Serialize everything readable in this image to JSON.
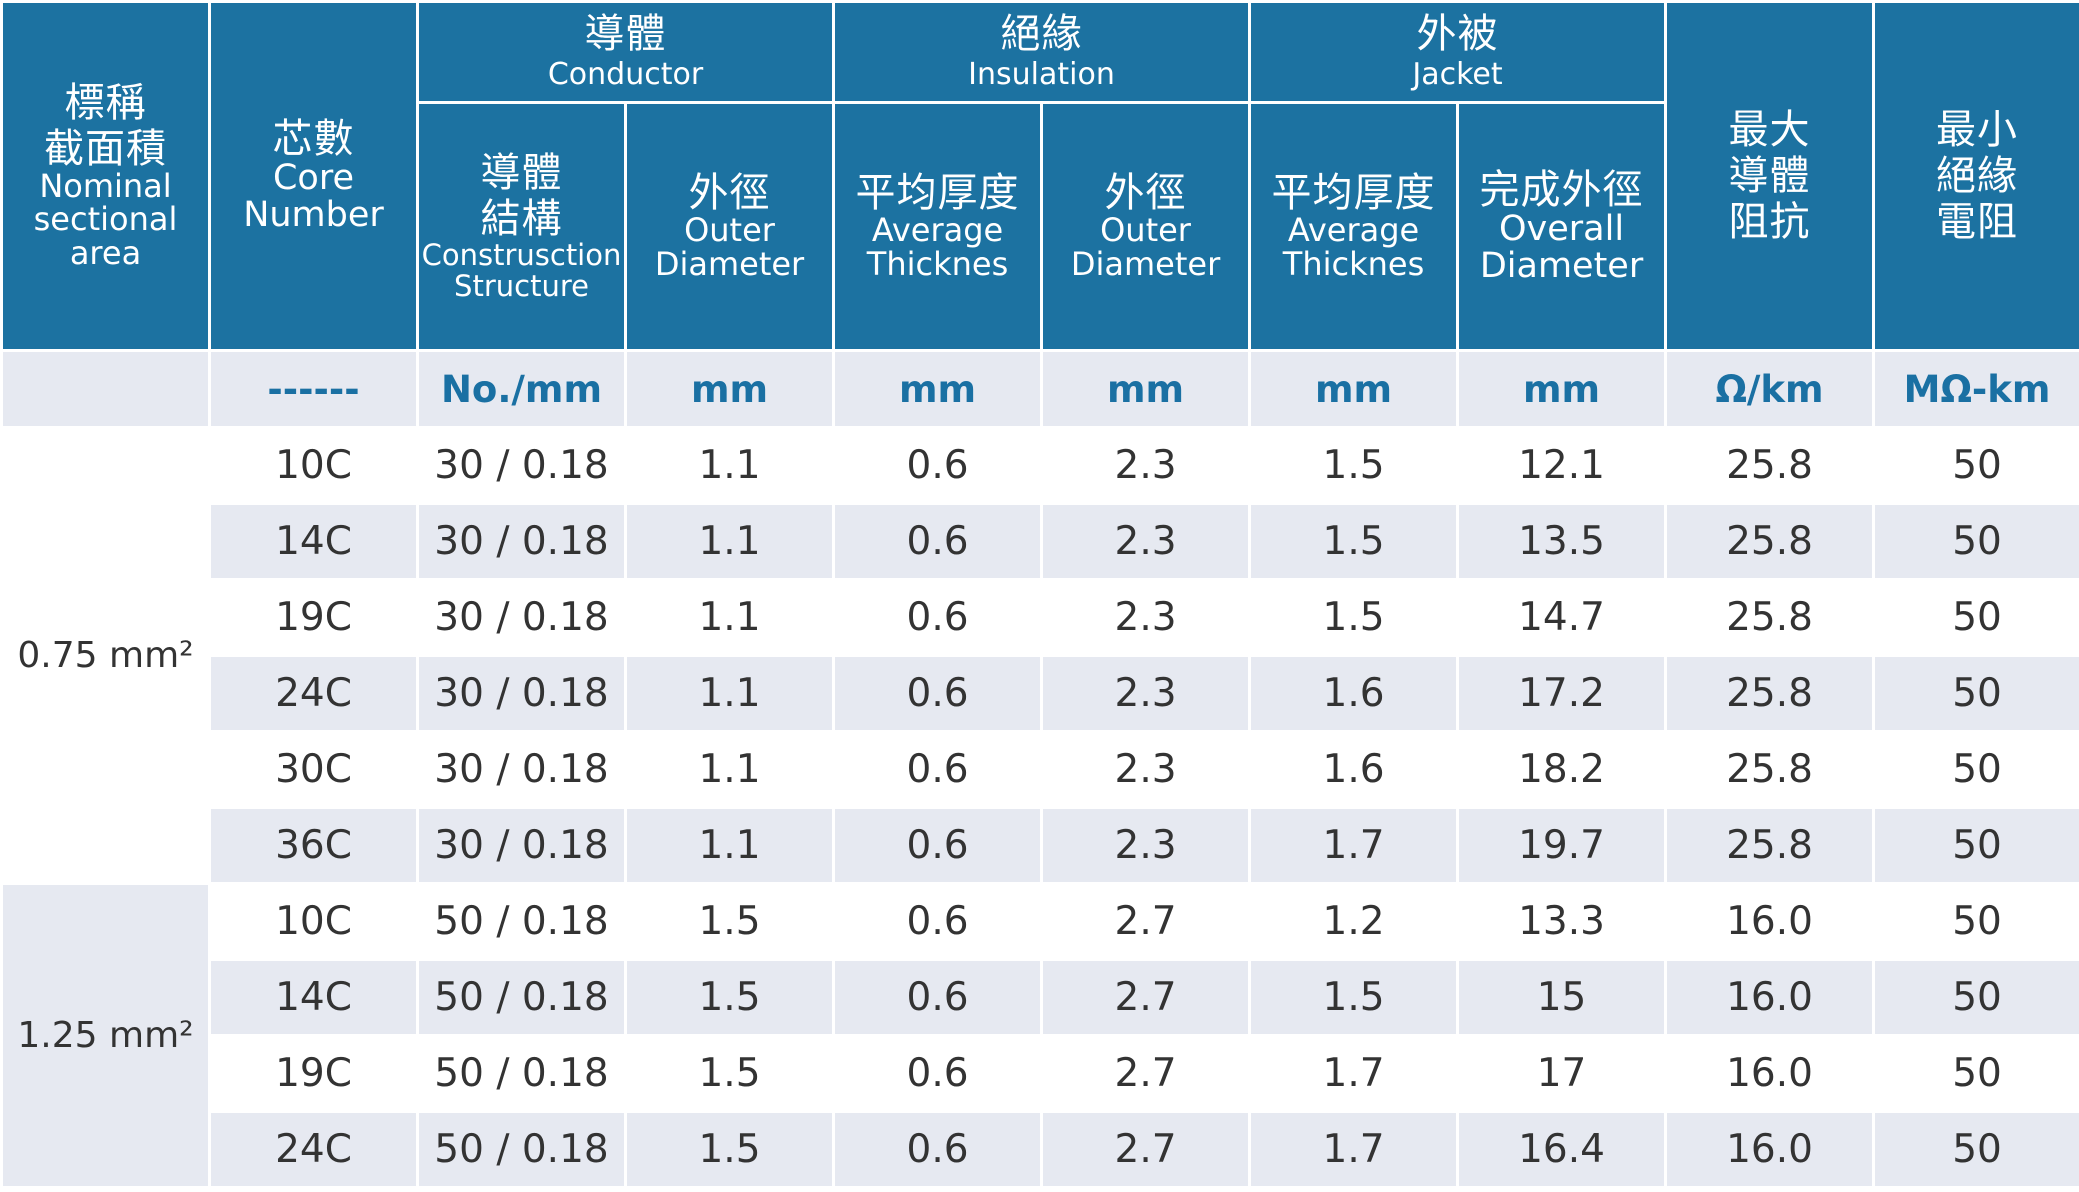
{
  "header": {
    "nominal_area": {
      "zh_1": "標稱",
      "zh_2": "截面積",
      "en_1": "Nominal",
      "en_2": "sectional",
      "en_3": "area"
    },
    "core_number": {
      "zh": "芯數",
      "en_1": "Core",
      "en_2": "Number"
    },
    "conductor": {
      "zh": "導體",
      "en": "Conductor"
    },
    "insulation": {
      "zh": "絕緣",
      "en": "Insulation"
    },
    "jacket": {
      "zh": "外被",
      "en": "Jacket"
    },
    "max_resistance": {
      "zh_1": "最大",
      "zh_2": "導體",
      "zh_3": "阻抗"
    },
    "min_insulation_resistance": {
      "zh_1": "最小",
      "zh_2": "絕緣",
      "zh_3": "電阻"
    },
    "conductor_structure": {
      "zh_1": "導體",
      "zh_2": "結構",
      "en_1": "Construsction",
      "en_2": "Structure"
    },
    "conductor_outer_diameter": {
      "zh": "外徑",
      "en_1": "Outer",
      "en_2": "Diameter"
    },
    "insulation_avg_thickness": {
      "zh": "平均厚度",
      "en_1": "Average",
      "en_2": "Thicknes"
    },
    "insulation_outer_diameter": {
      "zh": "外徑",
      "en_1": "Outer",
      "en_2": "Diameter"
    },
    "jacket_avg_thickness": {
      "zh": "平均厚度",
      "en_1": "Average",
      "en_2": "Thicknes"
    },
    "jacket_overall_diameter": {
      "zh": "完成外徑",
      "en_1": "Overall",
      "en_2": "Diameter"
    }
  },
  "units": {
    "core": "------",
    "structure": "No./mm",
    "cond_od": "mm",
    "ins_thk": "mm",
    "ins_od": "mm",
    "jkt_thk": "mm",
    "jkt_od": "mm",
    "resistance": "Ω/km",
    "insulation_res": "MΩ-km"
  },
  "groups": [
    {
      "area": "0.75 mm²",
      "rows": [
        {
          "core": "10C",
          "structure": "30 / 0.18",
          "cond_od": "1.1",
          "ins_thk": "0.6",
          "ins_od": "2.3",
          "jkt_thk": "1.5",
          "jkt_od": "12.1",
          "resistance": "25.8",
          "insulation_res": "50"
        },
        {
          "core": "14C",
          "structure": "30 / 0.18",
          "cond_od": "1.1",
          "ins_thk": "0.6",
          "ins_od": "2.3",
          "jkt_thk": "1.5",
          "jkt_od": "13.5",
          "resistance": "25.8",
          "insulation_res": "50"
        },
        {
          "core": "19C",
          "structure": "30 / 0.18",
          "cond_od": "1.1",
          "ins_thk": "0.6",
          "ins_od": "2.3",
          "jkt_thk": "1.5",
          "jkt_od": "14.7",
          "resistance": "25.8",
          "insulation_res": "50"
        },
        {
          "core": "24C",
          "structure": "30 / 0.18",
          "cond_od": "1.1",
          "ins_thk": "0.6",
          "ins_od": "2.3",
          "jkt_thk": "1.6",
          "jkt_od": "17.2",
          "resistance": "25.8",
          "insulation_res": "50"
        },
        {
          "core": "30C",
          "structure": "30 / 0.18",
          "cond_od": "1.1",
          "ins_thk": "0.6",
          "ins_od": "2.3",
          "jkt_thk": "1.6",
          "jkt_od": "18.2",
          "resistance": "25.8",
          "insulation_res": "50"
        },
        {
          "core": "36C",
          "structure": "30 / 0.18",
          "cond_od": "1.1",
          "ins_thk": "0.6",
          "ins_od": "2.3",
          "jkt_thk": "1.7",
          "jkt_od": "19.7",
          "resistance": "25.8",
          "insulation_res": "50"
        }
      ]
    },
    {
      "area": "1.25  mm²",
      "rows": [
        {
          "core": "10C",
          "structure": "50 / 0.18",
          "cond_od": "1.5",
          "ins_thk": "0.6",
          "ins_od": "2.7",
          "jkt_thk": "1.2",
          "jkt_od": "13.3",
          "resistance": "16.0",
          "insulation_res": "50"
        },
        {
          "core": "14C",
          "structure": "50 / 0.18",
          "cond_od": "1.5",
          "ins_thk": "0.6",
          "ins_od": "2.7",
          "jkt_thk": "1.5",
          "jkt_od": "15",
          "resistance": "16.0",
          "insulation_res": "50"
        },
        {
          "core": "19C",
          "structure": "50 / 0.18",
          "cond_od": "1.5",
          "ins_thk": "0.6",
          "ins_od": "2.7",
          "jkt_thk": "1.7",
          "jkt_od": "17",
          "resistance": "16.0",
          "insulation_res": "50"
        },
        {
          "core": "24C",
          "structure": "50 / 0.18",
          "cond_od": "1.5",
          "ins_thk": "0.6",
          "ins_od": "2.7",
          "jkt_thk": "1.7",
          "jkt_od": "16.4",
          "resistance": "16.0",
          "insulation_res": "50"
        }
      ]
    }
  ],
  "colors": {
    "header_bg": "#1c72a1",
    "header_text": "#ffffff",
    "unit_text": "#1a70a3",
    "stripe_bg": "#e6e9f1",
    "body_text": "#333333"
  }
}
